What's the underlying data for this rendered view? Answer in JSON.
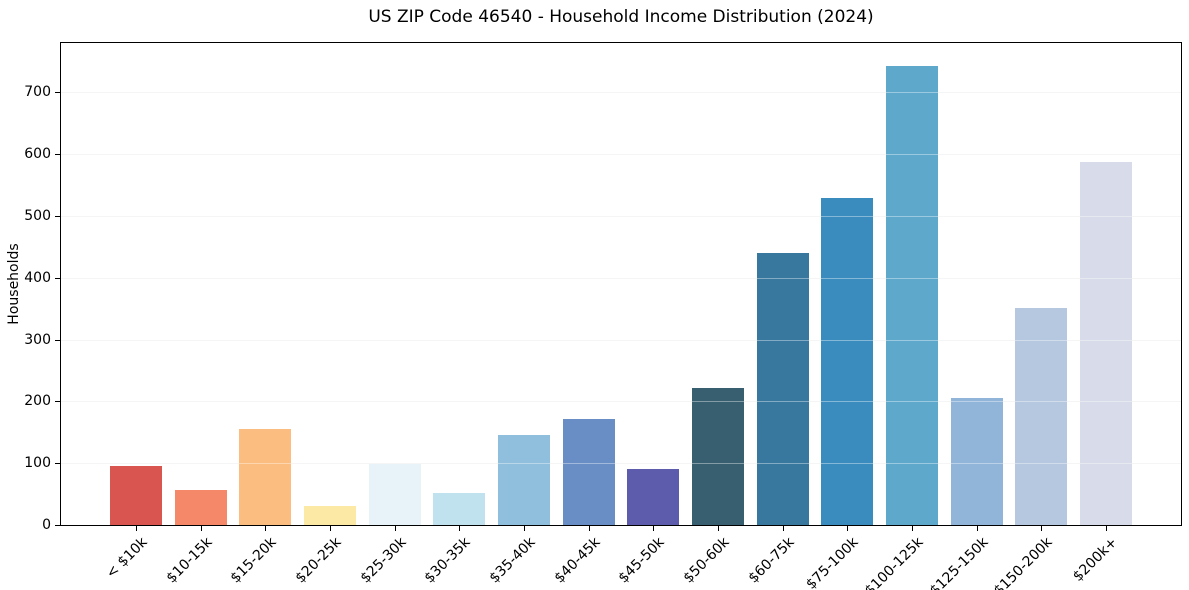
{
  "chart_data": {
    "type": "bar",
    "title": "US ZIP Code 46540 - Household Income Distribution (2024)",
    "xlabel": "",
    "ylabel": "Households",
    "categories": [
      "< $10k",
      "$10-15k",
      "$15-20k",
      "$20-25k",
      "$25-30k",
      "$30-35k",
      "$35-40k",
      "$40-45k",
      "$45-50k",
      "$50-60k",
      "$60-75k",
      "$75-100k",
      "$100-125k",
      "$125-150k",
      "$150-200k",
      "$200k+"
    ],
    "values": [
      95,
      57,
      155,
      31,
      99,
      52,
      146,
      172,
      90,
      221,
      441,
      530,
      742,
      206,
      351,
      588
    ],
    "bar_colors": [
      "#d8564f",
      "#f58868",
      "#fcbd80",
      "#fce9a5",
      "#e7f3f8",
      "#c0e1ee",
      "#90bedd",
      "#698ec5",
      "#5c5bac",
      "#375f70",
      "#38789f",
      "#3a8cbf",
      "#5ea8cc",
      "#90b5d8",
      "#b6c8df",
      "#d8dbe9"
    ],
    "yticks": [
      0,
      100,
      200,
      300,
      400,
      500,
      600,
      700
    ],
    "ylim": [
      0,
      780
    ],
    "grid": "horizontal",
    "legend": "none",
    "background_color": "#ffffff",
    "axis_color": "#000000"
  }
}
